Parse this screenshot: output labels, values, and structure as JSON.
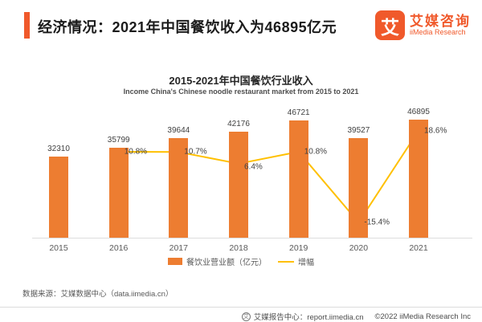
{
  "header": {
    "title": "经济情况：2021年中国餐饮收入为46895亿元"
  },
  "logo": {
    "mark": "艾",
    "name_cn": "艾媒咨询",
    "name_en": "iiMedia Research"
  },
  "chart": {
    "title": "2015-2021年中国餐饮行业收入",
    "subtitle": "Income China's Chinese noodle restaurant market from 2015 to 2021"
  },
  "chart_data": {
    "type": "bar",
    "categories": [
      "2015",
      "2016",
      "2017",
      "2018",
      "2019",
      "2020",
      "2021"
    ],
    "series": [
      {
        "name": "餐饮业营业额（亿元）",
        "type": "bar",
        "color": "#ED7D31",
        "values": [
          32310,
          35799,
          39644,
          42176,
          46721,
          39527,
          46895
        ]
      },
      {
        "name": "增幅",
        "type": "line",
        "color": "#FFC000",
        "unit": "%",
        "values": [
          null,
          10.8,
          10.7,
          6.4,
          10.8,
          -15.4,
          18.6
        ]
      }
    ],
    "title": "2015-2021年中国餐饮行业收入",
    "subtitle": "Income China's Chinese noodle restaurant market from 2015 to 2021",
    "xlabel": "",
    "ylabel": "",
    "grid": false,
    "legend_position": "bottom",
    "value_labels_shown": true
  },
  "source": "数据来源：艾媒数据中心（data.iimedia.cn）",
  "footer": {
    "report_center": "艾媒报告中心：report.iimedia.cn",
    "copyright": "©2022 iiMedia Research Inc",
    "globe_glyph": "艾"
  },
  "colors": {
    "accent": "#F0592B",
    "bar": "#ED7D31",
    "line": "#FFC000"
  }
}
